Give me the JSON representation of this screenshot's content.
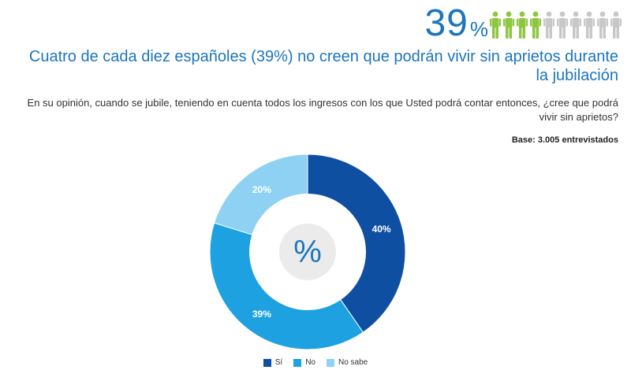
{
  "headline": {
    "number": "39",
    "unit": "%",
    "filled_people": 4,
    "total_people": 10,
    "filled_color": "#8dc63f",
    "empty_color": "#c8c8c8"
  },
  "title": "Cuatro de cada diez españoles (39%) no creen que podrán vivir sin aprietos durante la jubilación",
  "question": "En su opinión, cuando se jubile, teniendo en cuenta todos los ingresos con los que Usted podrá contar entonces, ¿cree que podrá vivir sin aprietos?",
  "base": "Base: 3.005 entrevistados",
  "center_symbol": "%",
  "chart_data": {
    "type": "pie",
    "donut": true,
    "title": "",
    "categories": [
      "Sí",
      "No",
      "No sabe"
    ],
    "values": [
      40,
      39,
      20
    ],
    "labels": [
      "40%",
      "39%",
      "20%"
    ],
    "colors": [
      "#0f4fa2",
      "#1ea1e1",
      "#8fd1f2"
    ],
    "legend_placement": "bottom"
  }
}
